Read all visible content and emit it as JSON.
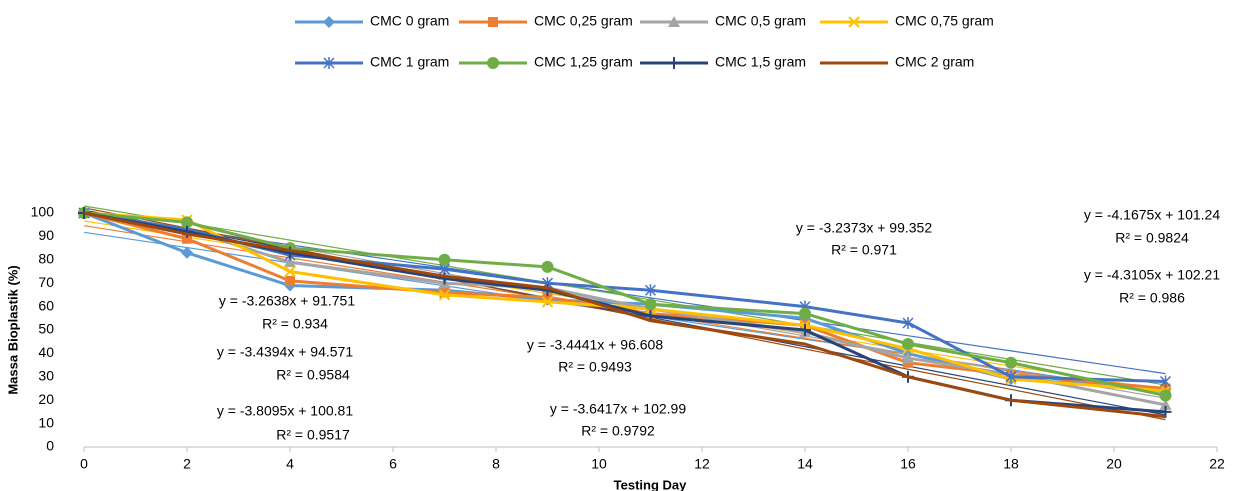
{
  "chart_data": {
    "type": "line",
    "x_label": "Testing Day",
    "y_label": "Massa Bioplastik (%)",
    "x": [
      0,
      2,
      4,
      7,
      9,
      11,
      14,
      16,
      18,
      21
    ],
    "xlim": [
      0,
      22
    ],
    "xticks": [
      0,
      2,
      4,
      6,
      8,
      10,
      12,
      14,
      16,
      18,
      20,
      22
    ],
    "ylim": [
      0,
      100
    ],
    "yticks": [
      0,
      10,
      20,
      30,
      40,
      50,
      60,
      70,
      80,
      90,
      100
    ],
    "grid": false,
    "legend": "top",
    "series": [
      {
        "name": "CMC 0 gram",
        "color": "#5b9bd5",
        "marker": "diamond",
        "values": [
          100,
          83,
          69,
          67,
          63,
          61,
          55,
          40,
          29,
          25
        ]
      },
      {
        "name": "CMC 0,25 gram",
        "color": "#ed7d31",
        "marker": "square",
        "values": [
          100,
          89,
          71,
          66,
          64,
          57,
          52,
          36,
          31,
          25
        ]
      },
      {
        "name": "CMC 0,5 gram",
        "color": "#a5a5a5",
        "marker": "triangle",
        "values": [
          100,
          93,
          79,
          70,
          68,
          59,
          49,
          38,
          31,
          18
        ]
      },
      {
        "name": "CMC 0,75 gram",
        "color": "#ffc000",
        "marker": "x",
        "values": [
          100,
          97,
          75,
          65,
          62,
          59,
          52,
          42,
          29,
          24
        ]
      },
      {
        "name": "CMC 1 gram",
        "color": "#4472c4",
        "marker": "star",
        "values": [
          100,
          93,
          82,
          76,
          70,
          67,
          60,
          53,
          30,
          28
        ]
      },
      {
        "name": "CMC 1,25 gram",
        "color": "#70ad47",
        "marker": "circle",
        "values": [
          100,
          96,
          85,
          80,
          77,
          61,
          57,
          44,
          36,
          22
        ]
      },
      {
        "name": "CMC 1,5 gram",
        "color": "#264478",
        "marker": "plus",
        "values": [
          100,
          92,
          83,
          72,
          67,
          56,
          50,
          30,
          20,
          15
        ]
      },
      {
        "name": "CMC 2 gram",
        "color": "#9e480e",
        "marker": "none",
        "values": [
          100,
          91,
          84,
          73,
          68,
          54,
          44,
          30,
          20,
          13
        ]
      }
    ],
    "trendlines": [
      {
        "equation": "y = -3.2638x + 91.751",
        "r2": "R² = 0.934",
        "slope": -3.2638,
        "intercept": 91.751,
        "color": "#5b9bd5"
      },
      {
        "equation": "y = -3.4394x + 94.571",
        "r2": "R² = 0.9584",
        "slope": -3.4394,
        "intercept": 94.571,
        "color": "#ed7d31"
      },
      {
        "equation": "y = -3.8095x + 100.81",
        "r2": "R² = 0.9517",
        "slope": -3.8095,
        "intercept": 100.81,
        "color": "#a5a5a5"
      },
      {
        "equation": "y = -3.4441x + 96.608",
        "r2": "R² = 0.9493",
        "slope": -3.4441,
        "intercept": 96.608,
        "color": "#ffc000"
      },
      {
        "equation": "y = -3.2373x + 99.352",
        "r2": "R² = 0.971",
        "slope": -3.2373,
        "intercept": 99.352,
        "color": "#4472c4"
      },
      {
        "equation": "y = -3.6417x + 102.99",
        "r2": "R² = 0.9792",
        "slope": -3.6417,
        "intercept": 102.99,
        "color": "#70ad47"
      },
      {
        "equation": "y = -4.1675x + 101.24",
        "r2": "R² = 0.9824",
        "slope": -4.1675,
        "intercept": 101.24,
        "color": "#264478"
      },
      {
        "equation": "y = -4.3105x + 102.21",
        "r2": "R² = 0.986",
        "slope": -4.3105,
        "intercept": 102.21,
        "color": "#9e480e"
      }
    ]
  }
}
